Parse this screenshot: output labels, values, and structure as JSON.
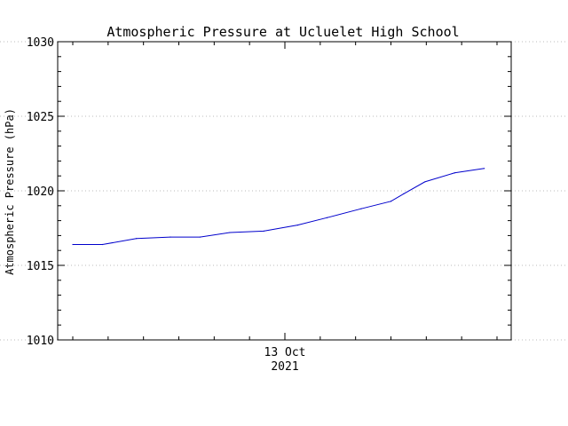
{
  "chart_data": {
    "type": "line",
    "title": "Atmospheric Pressure at Ucluelet High School",
    "ylabel": "Atmospheric Pressure (hPa)",
    "xlabel": "",
    "x_tick_labels": [
      {
        "line1": "13 Oct",
        "line2": "2021"
      }
    ],
    "ylim": [
      1010,
      1030
    ],
    "y_ticks": [
      "1010",
      "1015",
      "1020",
      "1025",
      "1030"
    ],
    "grid": true,
    "series": [
      {
        "color": "#0000cc",
        "points": [
          {
            "t": 0.0,
            "y": 1016.4
          },
          {
            "t": 0.07,
            "y": 1016.4
          },
          {
            "t": 0.15,
            "y": 1016.8
          },
          {
            "t": 0.23,
            "y": 1016.9
          },
          {
            "t": 0.3,
            "y": 1016.9
          },
          {
            "t": 0.37,
            "y": 1017.2
          },
          {
            "t": 0.45,
            "y": 1017.3
          },
          {
            "t": 0.53,
            "y": 1017.7
          },
          {
            "t": 0.6,
            "y": 1018.2
          },
          {
            "t": 0.68,
            "y": 1018.8
          },
          {
            "t": 0.75,
            "y": 1019.3
          },
          {
            "t": 0.78,
            "y": 1019.8
          },
          {
            "t": 0.83,
            "y": 1020.6
          },
          {
            "t": 0.9,
            "y": 1021.2
          },
          {
            "t": 0.97,
            "y": 1021.5
          }
        ]
      }
    ]
  }
}
